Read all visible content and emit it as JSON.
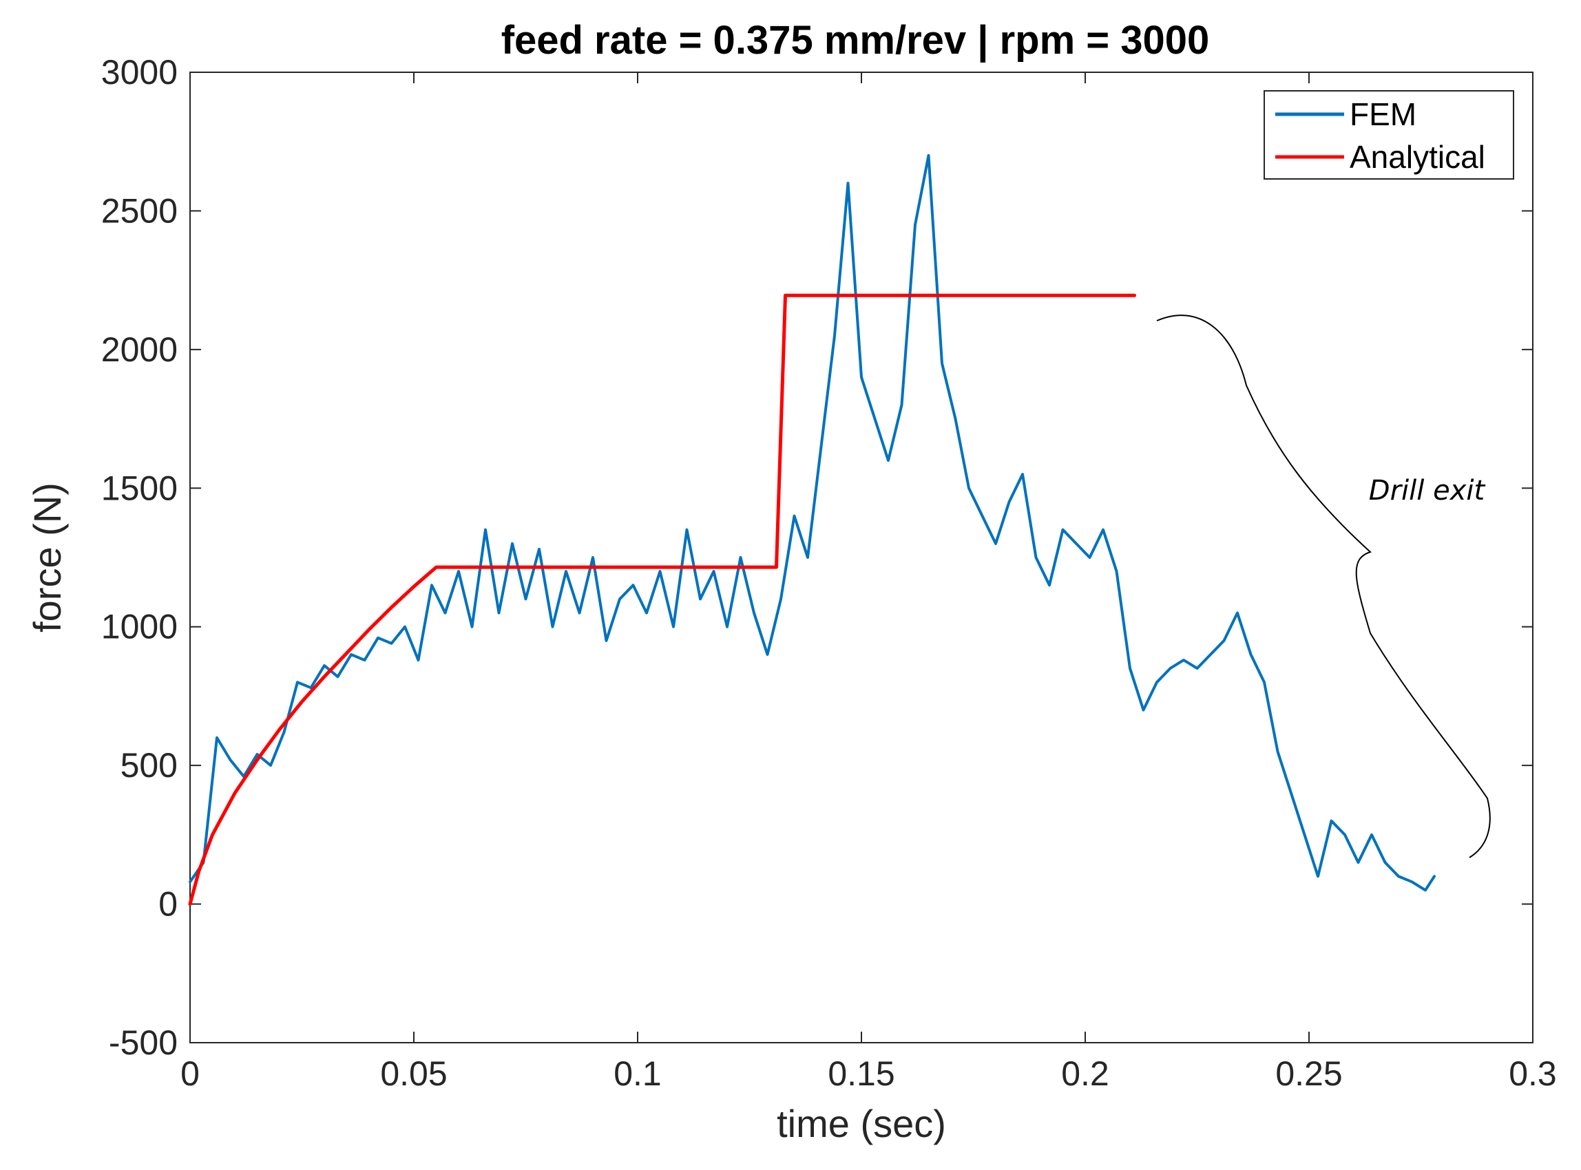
{
  "chart_data": {
    "type": "line",
    "title": "feed rate = 0.375 mm/rev | rpm = 3000",
    "xlabel": "time (sec)",
    "ylabel": "force (N)",
    "xlim": [
      0,
      0.3
    ],
    "ylim": [
      -500,
      3000
    ],
    "x_ticks": [
      0,
      0.05,
      0.1,
      0.15,
      0.2,
      0.25,
      0.3
    ],
    "x_tick_labels": [
      "0",
      "0.05",
      "0.1",
      "0.15",
      "0.2",
      "0.25",
      "0.3"
    ],
    "y_ticks": [
      -500,
      0,
      500,
      1000,
      1500,
      2000,
      2500,
      3000
    ],
    "y_tick_labels": [
      "-500",
      "0",
      "500",
      "1000",
      "1500",
      "2000",
      "2500",
      "3000"
    ],
    "grid": false,
    "legend_position": "top-right",
    "series": [
      {
        "name": "FEM",
        "color": "#0072bd",
        "x": [
          0,
          0.003,
          0.006,
          0.009,
          0.012,
          0.015,
          0.018,
          0.021,
          0.024,
          0.027,
          0.03,
          0.033,
          0.036,
          0.039,
          0.042,
          0.045,
          0.048,
          0.051,
          0.054,
          0.057,
          0.06,
          0.063,
          0.066,
          0.069,
          0.072,
          0.075,
          0.078,
          0.081,
          0.084,
          0.087,
          0.09,
          0.093,
          0.096,
          0.099,
          0.102,
          0.105,
          0.108,
          0.111,
          0.114,
          0.117,
          0.12,
          0.123,
          0.126,
          0.129,
          0.132,
          0.135,
          0.138,
          0.141,
          0.144,
          0.147,
          0.15,
          0.153,
          0.156,
          0.159,
          0.162,
          0.165,
          0.168,
          0.171,
          0.174,
          0.177,
          0.18,
          0.183,
          0.186,
          0.189,
          0.192,
          0.195,
          0.198,
          0.201,
          0.204,
          0.207,
          0.21,
          0.213,
          0.216,
          0.219,
          0.222,
          0.225,
          0.228,
          0.231,
          0.234,
          0.237,
          0.24,
          0.243,
          0.246,
          0.249,
          0.252,
          0.255,
          0.258,
          0.261,
          0.264,
          0.267,
          0.27,
          0.273,
          0.276,
          0.278
        ],
        "values": [
          80,
          150,
          600,
          520,
          460,
          540,
          500,
          620,
          800,
          780,
          860,
          820,
          900,
          880,
          960,
          940,
          1000,
          880,
          1150,
          1050,
          1200,
          1000,
          1350,
          1050,
          1300,
          1100,
          1280,
          1000,
          1200,
          1050,
          1250,
          950,
          1100,
          1150,
          1050,
          1200,
          1000,
          1350,
          1100,
          1200,
          1000,
          1250,
          1050,
          900,
          1100,
          1400,
          1250,
          1650,
          2050,
          2600,
          1900,
          1750,
          1600,
          1800,
          2450,
          2700,
          1950,
          1750,
          1500,
          1400,
          1300,
          1450,
          1550,
          1250,
          1150,
          1350,
          1300,
          1250,
          1350,
          1200,
          850,
          700,
          800,
          850,
          880,
          850,
          900,
          950,
          1050,
          900,
          800,
          550,
          400,
          250,
          100,
          300,
          250,
          150,
          250,
          150,
          100,
          80,
          50,
          100
        ]
      },
      {
        "name": "Analytical",
        "color": "#ff0000",
        "x": [
          0,
          0.002,
          0.005,
          0.01,
          0.015,
          0.02,
          0.025,
          0.03,
          0.035,
          0.04,
          0.045,
          0.05,
          0.055,
          0.131,
          0.133,
          0.211
        ],
        "values": [
          0,
          120,
          250,
          400,
          520,
          630,
          730,
          820,
          905,
          990,
          1070,
          1145,
          1215,
          1215,
          2195,
          2195
        ]
      }
    ],
    "annotation": {
      "text": "Drill exit",
      "x_range": [
        0.215,
        0.285
      ]
    }
  }
}
